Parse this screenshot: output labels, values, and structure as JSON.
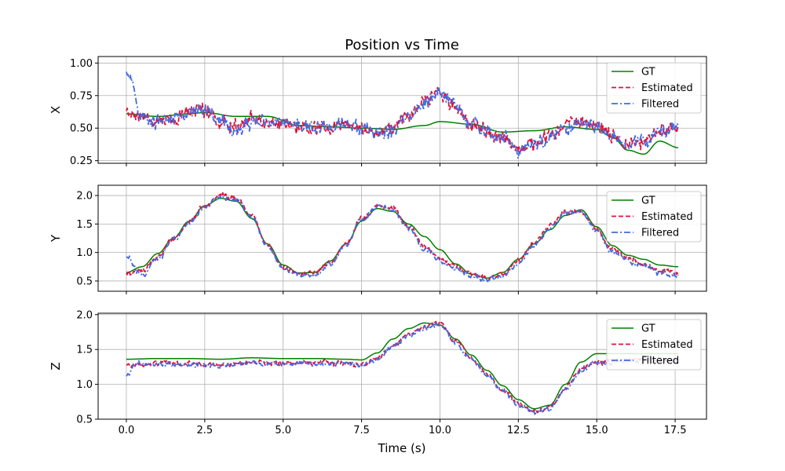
{
  "chart_data": {
    "type": "line",
    "title": "Position vs Time",
    "xlabel": "Time (s)",
    "xlim": [
      -0.9,
      18.5
    ],
    "xticks": [
      "0.0",
      "2.5",
      "5.0",
      "7.5",
      "10.0",
      "12.5",
      "15.0",
      "17.5"
    ],
    "xtick_values": [
      0,
      2.5,
      5,
      7.5,
      10,
      12.5,
      15,
      17.5
    ],
    "grid": true,
    "legend_position": "top-right",
    "legend": [
      "GT",
      "Estimated",
      "Filtered"
    ],
    "colors": {
      "GT": "#008000",
      "Estimated": "#dc143c",
      "Filtered": "#4169e1"
    },
    "subplots": [
      {
        "ylabel": "X",
        "ylim": [
          0.23,
          1.05
        ],
        "yticks": [
          "0.25",
          "0.50",
          "0.75",
          "1.00"
        ],
        "ytick_values": [
          0.25,
          0.5,
          0.75,
          1.0
        ],
        "noise": 0.07,
        "series": [
          {
            "name": "GT",
            "x": [
              0,
              1,
              2,
              2.5,
              3.5,
              4.5,
              5.5,
              6.5,
              7.5,
              8.5,
              9.5,
              10,
              11,
              12,
              13,
              14,
              15,
              15.5,
              16,
              16.5,
              17,
              17.6
            ],
            "values": [
              0.61,
              0.59,
              0.61,
              0.62,
              0.59,
              0.59,
              0.52,
              0.51,
              0.5,
              0.49,
              0.52,
              0.55,
              0.53,
              0.47,
              0.48,
              0.51,
              0.49,
              0.43,
              0.33,
              0.3,
              0.4,
              0.35
            ]
          },
          {
            "name": "Estimated",
            "x": [
              0,
              0.5,
              1,
              1.5,
              2,
              2.5,
              3,
              3.5,
              4,
              5,
              6,
              7,
              8,
              8.5,
              9,
              9.5,
              10,
              10.5,
              11,
              12,
              12.5,
              13,
              14,
              14.5,
              15,
              15.5,
              16,
              16.5,
              17,
              17.6
            ],
            "values": [
              0.6,
              0.58,
              0.55,
              0.57,
              0.63,
              0.63,
              0.55,
              0.5,
              0.56,
              0.53,
              0.5,
              0.53,
              0.47,
              0.5,
              0.6,
              0.7,
              0.78,
              0.66,
              0.52,
              0.44,
              0.34,
              0.38,
              0.52,
              0.55,
              0.52,
              0.45,
              0.38,
              0.41,
              0.48,
              0.5
            ]
          },
          {
            "name": "Filtered",
            "x": [
              0,
              0.5,
              1,
              1.5,
              2,
              2.5,
              3,
              3.5,
              4,
              5,
              6,
              7,
              8,
              8.5,
              9,
              9.5,
              10,
              10.5,
              11,
              12,
              12.5,
              13,
              14,
              14.5,
              15,
              15.5,
              16,
              16.5,
              17,
              17.6
            ],
            "values": [
              0.95,
              0.57,
              0.55,
              0.57,
              0.62,
              0.64,
              0.55,
              0.49,
              0.55,
              0.53,
              0.5,
              0.52,
              0.46,
              0.49,
              0.59,
              0.69,
              0.77,
              0.66,
              0.52,
              0.43,
              0.33,
              0.37,
              0.51,
              0.54,
              0.51,
              0.44,
              0.36,
              0.4,
              0.47,
              0.52
            ]
          }
        ]
      },
      {
        "ylabel": "Y",
        "ylim": [
          0.32,
          2.18
        ],
        "yticks": [
          "0.5",
          "1.0",
          "1.5",
          "2.0"
        ],
        "ytick_values": [
          0.5,
          1.0,
          1.5,
          2.0
        ],
        "noise": 0.06,
        "series": [
          {
            "name": "GT",
            "x": [
              0,
              0.5,
              1,
              1.5,
              2,
              2.5,
              3,
              3.5,
              4,
              4.5,
              5,
              5.5,
              6,
              6.5,
              7,
              7.5,
              8,
              8.5,
              9,
              9.5,
              10,
              10.5,
              11,
              11.5,
              12,
              12.5,
              13,
              13.5,
              14,
              14.5,
              15,
              15.5,
              16,
              16.5,
              17,
              17.6
            ],
            "values": [
              0.65,
              0.75,
              0.98,
              1.25,
              1.55,
              1.82,
              1.95,
              1.9,
              1.6,
              1.15,
              0.78,
              0.64,
              0.65,
              0.85,
              1.15,
              1.55,
              1.77,
              1.72,
              1.5,
              1.28,
              1.05,
              0.8,
              0.62,
              0.55,
              0.65,
              0.88,
              1.15,
              1.4,
              1.65,
              1.75,
              1.45,
              1.12,
              0.95,
              0.88,
              0.78,
              0.75
            ]
          },
          {
            "name": "Estimated",
            "x": [
              0,
              0.5,
              1,
              1.5,
              2,
              2.5,
              3,
              3.5,
              4,
              4.5,
              5,
              5.5,
              6,
              6.5,
              7,
              7.5,
              8,
              8.5,
              9,
              9.5,
              10,
              10.5,
              11,
              11.5,
              12,
              12.5,
              13,
              13.5,
              14,
              14.5,
              15,
              15.5,
              16,
              16.5,
              17,
              17.6
            ],
            "values": [
              0.62,
              0.68,
              0.92,
              1.25,
              1.55,
              1.82,
              2.0,
              1.95,
              1.65,
              1.15,
              0.75,
              0.62,
              0.62,
              0.8,
              1.15,
              1.6,
              1.82,
              1.78,
              1.45,
              1.1,
              0.9,
              0.75,
              0.62,
              0.55,
              0.62,
              0.85,
              1.15,
              1.45,
              1.72,
              1.72,
              1.4,
              1.05,
              0.9,
              0.8,
              0.68,
              0.65
            ]
          },
          {
            "name": "Filtered",
            "x": [
              0,
              0.5,
              1,
              1.5,
              2,
              2.5,
              3,
              3.5,
              4,
              4.5,
              5,
              5.5,
              6,
              6.5,
              7,
              7.5,
              8,
              8.5,
              9,
              9.5,
              10,
              10.5,
              11,
              11.5,
              12,
              12.5,
              13,
              13.5,
              14,
              14.5,
              15,
              15.5,
              16,
              16.5,
              17,
              17.6
            ],
            "values": [
              0.95,
              0.6,
              0.88,
              1.22,
              1.52,
              1.8,
              1.96,
              1.92,
              1.62,
              1.12,
              0.72,
              0.6,
              0.6,
              0.78,
              1.12,
              1.58,
              1.8,
              1.75,
              1.42,
              1.06,
              0.86,
              0.72,
              0.6,
              0.52,
              0.6,
              0.82,
              1.12,
              1.42,
              1.7,
              1.7,
              1.38,
              1.02,
              0.86,
              0.76,
              0.64,
              0.6
            ]
          }
        ]
      },
      {
        "ylabel": "Z",
        "ylim": [
          0.5,
          2.02
        ],
        "yticks": [
          "0.5",
          "1.0",
          "1.5",
          "2.0"
        ],
        "ytick_values": [
          0.5,
          1.0,
          1.5,
          2.0
        ],
        "noise": 0.045,
        "series": [
          {
            "name": "GT",
            "x": [
              0,
              1,
              2,
              3,
              4,
              5,
              6,
              7,
              7.5,
              8,
              8.5,
              9,
              9.5,
              10,
              10.5,
              11,
              11.5,
              12,
              12.5,
              13,
              13.5,
              14,
              14.5,
              15,
              16,
              17,
              17.6
            ],
            "values": [
              1.36,
              1.37,
              1.37,
              1.36,
              1.38,
              1.37,
              1.37,
              1.36,
              1.35,
              1.45,
              1.65,
              1.8,
              1.88,
              1.85,
              1.65,
              1.42,
              1.2,
              0.98,
              0.78,
              0.65,
              0.7,
              1.0,
              1.32,
              1.44,
              1.44,
              1.44,
              1.44
            ]
          },
          {
            "name": "Estimated",
            "x": [
              0,
              1,
              2,
              3,
              4,
              5,
              6,
              7,
              7.5,
              8,
              8.5,
              9,
              9.5,
              10,
              10.5,
              11,
              11.5,
              12,
              12.5,
              13,
              13.5,
              14,
              14.5,
              15,
              16,
              17,
              17.6
            ],
            "values": [
              1.28,
              1.3,
              1.29,
              1.28,
              1.32,
              1.3,
              1.31,
              1.3,
              1.28,
              1.38,
              1.55,
              1.72,
              1.82,
              1.88,
              1.62,
              1.38,
              1.15,
              0.92,
              0.72,
              0.62,
              0.68,
              0.95,
              1.22,
              1.32,
              1.35,
              1.35,
              1.33
            ]
          },
          {
            "name": "Filtered",
            "x": [
              0,
              0.3,
              1,
              2,
              3,
              4,
              5,
              6,
              7,
              7.5,
              8,
              8.5,
              9,
              9.5,
              10,
              10.5,
              11,
              11.5,
              12,
              12.5,
              13,
              13.5,
              14,
              14.5,
              15,
              16,
              17,
              17.6
            ],
            "values": [
              1.1,
              1.3,
              1.29,
              1.28,
              1.27,
              1.31,
              1.29,
              1.3,
              1.29,
              1.27,
              1.37,
              1.54,
              1.7,
              1.8,
              1.86,
              1.6,
              1.36,
              1.13,
              0.9,
              0.7,
              0.6,
              0.66,
              0.93,
              1.2,
              1.3,
              1.34,
              1.36,
              1.32
            ]
          }
        ]
      }
    ]
  }
}
